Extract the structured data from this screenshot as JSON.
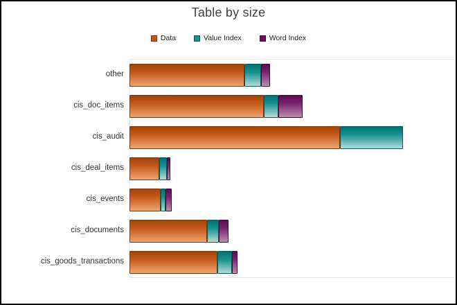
{
  "window": {
    "background": "#ffffff",
    "border_color": "#000000"
  },
  "header": {
    "title": "Table by size"
  },
  "legend": {
    "items": [
      {
        "label": "Data",
        "color": "#c3571a",
        "border_color": "#7d370b"
      },
      {
        "label": "Value Index",
        "color": "#149190",
        "border_color": "#075a5a"
      },
      {
        "label": "Word Index",
        "color": "#6b1061",
        "border_color": "#43093d"
      }
    ]
  },
  "chart_data": {
    "type": "bar",
    "orientation": "horizontal",
    "stacked": true,
    "title": "Table by size",
    "categories": [
      "other",
      "cis_doc_items",
      "cis_audit",
      "cis_deal_items",
      "cis_events",
      "cis_documents",
      "cis_goods_transactions"
    ],
    "series": [
      {
        "name": "Data",
        "color": "#c3571a",
        "values": [
          166,
          194,
          304,
          43,
          45,
          112,
          127
        ]
      },
      {
        "name": "Value Index",
        "color": "#149190",
        "values": [
          24,
          21,
          91,
          11,
          7,
          17,
          21
        ]
      },
      {
        "name": "Word Index",
        "color": "#6b1061",
        "values": [
          13,
          35,
          0,
          5,
          9,
          14,
          8
        ]
      }
    ],
    "value_units": "relative size (no numeric axis shown in chart)",
    "xlim": [
      0,
      470
    ],
    "legend_position": "top",
    "grid": false,
    "ylabel": "",
    "xlabel": ""
  }
}
